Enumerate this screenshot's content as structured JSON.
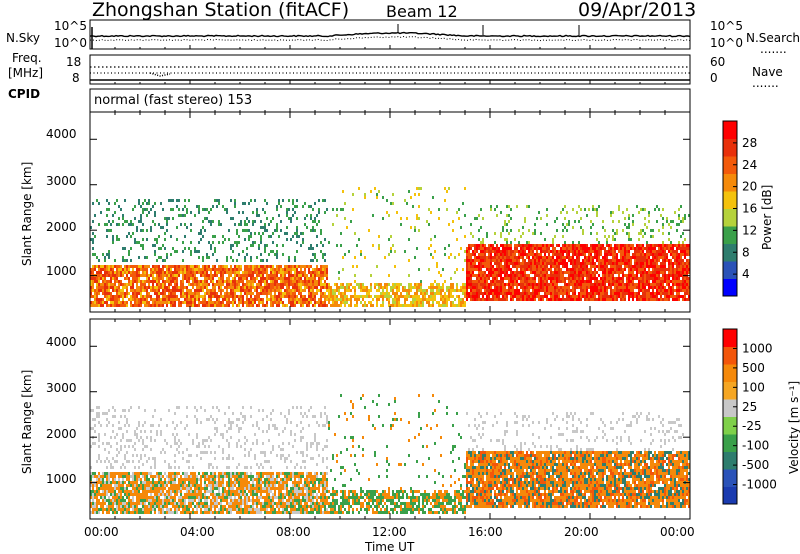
{
  "header": {
    "station": "Zhongshan Station (fitACF)",
    "beam": "Beam 12",
    "date": "09/Apr/2013"
  },
  "panel_labels": {
    "nsky": "N.Sky",
    "freq_line1": "Freq.",
    "freq_line2": "[MHz]",
    "cpid": "CPID",
    "nsearch": "N.Search",
    "nave": "Nave",
    "mode_text": "normal (fast stereo) 153",
    "dotted_legend": "......."
  },
  "colors": {
    "power_scale": [
      "#0000ff",
      "#2a52b8",
      "#2e7d6e",
      "#3aa04a",
      "#b5d23c",
      "#f4c20d",
      "#f58a0a",
      "#f35a0a",
      "#e8300a",
      "#ff0000"
    ],
    "velocity_scale": [
      "#ff0000",
      "#f3560a",
      "#f5890a",
      "#f5a623",
      "#c8c8c8",
      "#7fd04a",
      "#3aa04a",
      "#2e7d6e",
      "#2a52b8",
      "#1a3bb0"
    ]
  },
  "chart_data": [
    {
      "type": "line",
      "name": "noise-panel",
      "left_axis_ticks": [
        "10^5",
        "10^0"
      ],
      "right_axis_ticks": [
        "10^5",
        "10^0"
      ],
      "left_label": "N.Sky",
      "right_label": "N.Search"
    },
    {
      "type": "line",
      "name": "frequency-panel",
      "left_axis_ticks": [
        "18",
        "8"
      ],
      "right_axis_ticks": [
        "60",
        "0"
      ],
      "left_label": "Freq. [MHz]",
      "right_label": "Nave"
    },
    {
      "type": "heatmap",
      "name": "power-panel",
      "ylabel": "Slant Range [km]",
      "ylim": [
        200,
        4600
      ],
      "yticks": [
        "4000",
        "3000",
        "2000",
        "1000"
      ],
      "colorbar_label": "Power [dB]",
      "colorbar_ticks": [
        "28",
        "24",
        "20",
        "16",
        "12",
        "8",
        "4"
      ],
      "colorbar_range": [
        0,
        32
      ]
    },
    {
      "type": "heatmap",
      "name": "velocity-panel",
      "ylabel": "Slant Range [km]",
      "ylim": [
        200,
        4600
      ],
      "yticks": [
        "4000",
        "3000",
        "2000",
        "1000"
      ],
      "colorbar_label": "Velocity [m s⁻¹]",
      "colorbar_ticks": [
        "1000",
        "500",
        "100",
        "25",
        "-25",
        "-100",
        "-500",
        "-1000"
      ]
    }
  ],
  "x_axis": {
    "ticks": [
      "00:00",
      "04:00",
      "08:00",
      "12:00",
      "16:00",
      "20:00",
      "00:00"
    ],
    "label": "Time UT",
    "range_hours": [
      0,
      24
    ]
  }
}
